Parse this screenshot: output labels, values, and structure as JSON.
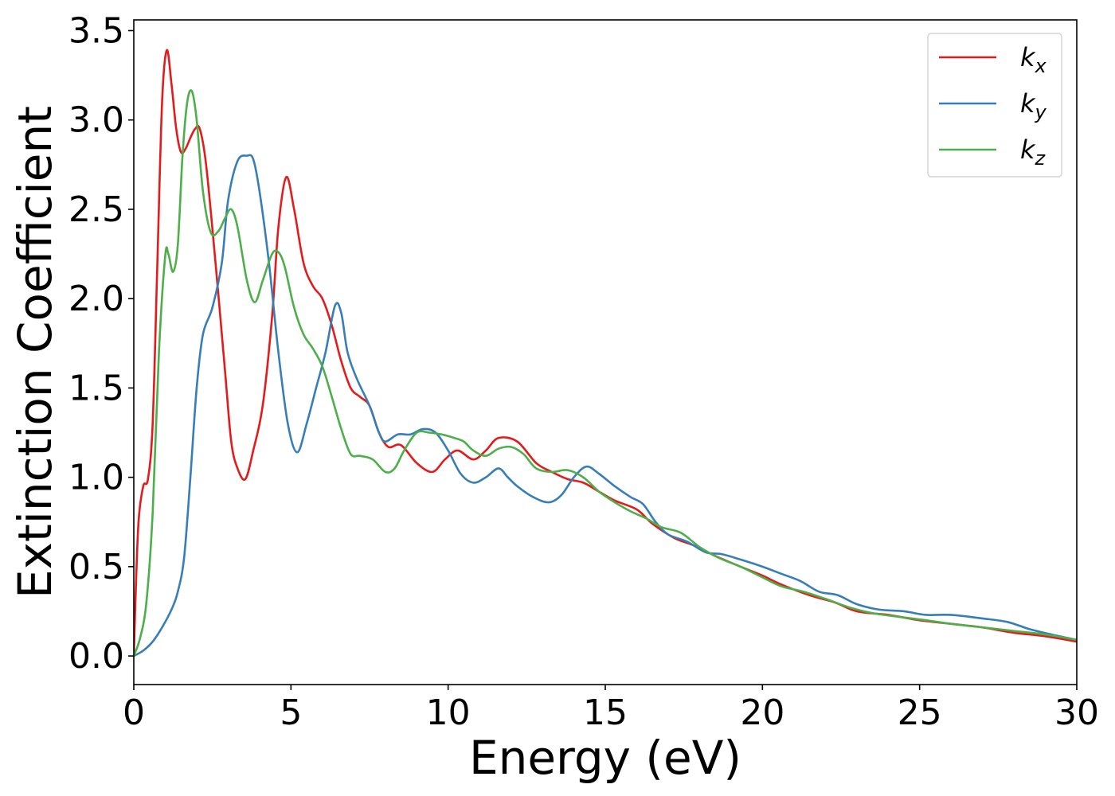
{
  "chart_data": {
    "type": "line",
    "title": "",
    "xlabel": "Energy (eV)",
    "ylabel": "Extinction Coefficient",
    "xlim": [
      0,
      30
    ],
    "ylim": [
      -0.16,
      3.56
    ],
    "xticks": [
      0,
      5,
      10,
      15,
      20,
      25,
      30
    ],
    "xtick_labels": [
      "0",
      "5",
      "10",
      "15",
      "20",
      "25",
      "30"
    ],
    "yticks": [
      0.0,
      0.5,
      1.0,
      1.5,
      2.0,
      2.5,
      3.0,
      3.5
    ],
    "ytick_labels": [
      "0.0",
      "0.5",
      "1.0",
      "1.5",
      "2.0",
      "2.5",
      "3.0",
      "3.5"
    ],
    "grid": false,
    "legend_position": "top-right",
    "series": [
      {
        "name": "kx",
        "label_base": "k",
        "label_sub": "x",
        "color": "#e41a1c",
        "points": [
          [
            0,
            0
          ],
          [
            0.05,
            0.3
          ],
          [
            0.15,
            0.75
          ],
          [
            0.3,
            0.95
          ],
          [
            0.45,
            0.99
          ],
          [
            0.6,
            1.3
          ],
          [
            0.75,
            2.2
          ],
          [
            0.9,
            3.1
          ],
          [
            1.05,
            3.39
          ],
          [
            1.2,
            3.2
          ],
          [
            1.35,
            2.95
          ],
          [
            1.5,
            2.82
          ],
          [
            1.65,
            2.84
          ],
          [
            1.8,
            2.9
          ],
          [
            1.95,
            2.95
          ],
          [
            2.1,
            2.95
          ],
          [
            2.3,
            2.75
          ],
          [
            2.6,
            2.2
          ],
          [
            2.9,
            1.6
          ],
          [
            3.1,
            1.2
          ],
          [
            3.3,
            1.05
          ],
          [
            3.55,
            0.99
          ],
          [
            3.8,
            1.15
          ],
          [
            4.1,
            1.4
          ],
          [
            4.4,
            1.9
          ],
          [
            4.6,
            2.4
          ],
          [
            4.85,
            2.68
          ],
          [
            5.1,
            2.5
          ],
          [
            5.4,
            2.2
          ],
          [
            5.7,
            2.07
          ],
          [
            6.0,
            2.0
          ],
          [
            6.3,
            1.85
          ],
          [
            6.6,
            1.65
          ],
          [
            6.9,
            1.5
          ],
          [
            7.2,
            1.45
          ],
          [
            7.5,
            1.4
          ],
          [
            7.8,
            1.25
          ],
          [
            8.1,
            1.17
          ],
          [
            8.5,
            1.18
          ],
          [
            9.0,
            1.08
          ],
          [
            9.5,
            1.03
          ],
          [
            9.9,
            1.1
          ],
          [
            10.3,
            1.15
          ],
          [
            10.8,
            1.1
          ],
          [
            11.2,
            1.15
          ],
          [
            11.6,
            1.22
          ],
          [
            12.2,
            1.2
          ],
          [
            12.8,
            1.08
          ],
          [
            13.3,
            1.03
          ],
          [
            13.8,
            0.99
          ],
          [
            14.3,
            0.97
          ],
          [
            14.8,
            0.92
          ],
          [
            15.3,
            0.87
          ],
          [
            16.0,
            0.82
          ],
          [
            16.5,
            0.74
          ],
          [
            17.2,
            0.66
          ],
          [
            17.8,
            0.62
          ],
          [
            18.5,
            0.56
          ],
          [
            19.3,
            0.5
          ],
          [
            20.0,
            0.45
          ],
          [
            20.6,
            0.4
          ],
          [
            21.5,
            0.34
          ],
          [
            22.3,
            0.3
          ],
          [
            23.0,
            0.25
          ],
          [
            24.0,
            0.23
          ],
          [
            25.0,
            0.2
          ],
          [
            26.0,
            0.18
          ],
          [
            27.0,
            0.16
          ],
          [
            28.0,
            0.13
          ],
          [
            29.0,
            0.11
          ],
          [
            30.0,
            0.08
          ]
        ]
      },
      {
        "name": "ky",
        "label_base": "k",
        "label_sub": "y",
        "color": "#377eb8",
        "points": [
          [
            0,
            0
          ],
          [
            0.3,
            0.03
          ],
          [
            0.6,
            0.08
          ],
          [
            0.9,
            0.16
          ],
          [
            1.2,
            0.26
          ],
          [
            1.4,
            0.36
          ],
          [
            1.6,
            0.55
          ],
          [
            1.8,
            1.0
          ],
          [
            2.0,
            1.5
          ],
          [
            2.2,
            1.8
          ],
          [
            2.5,
            1.95
          ],
          [
            2.8,
            2.2
          ],
          [
            3.0,
            2.55
          ],
          [
            3.3,
            2.77
          ],
          [
            3.6,
            2.8
          ],
          [
            3.8,
            2.78
          ],
          [
            4.0,
            2.6
          ],
          [
            4.3,
            2.2
          ],
          [
            4.6,
            1.7
          ],
          [
            4.9,
            1.3
          ],
          [
            5.2,
            1.14
          ],
          [
            5.5,
            1.3
          ],
          [
            5.8,
            1.5
          ],
          [
            6.1,
            1.7
          ],
          [
            6.4,
            1.96
          ],
          [
            6.6,
            1.92
          ],
          [
            6.8,
            1.7
          ],
          [
            7.1,
            1.55
          ],
          [
            7.5,
            1.4
          ],
          [
            7.8,
            1.25
          ],
          [
            8.0,
            1.2
          ],
          [
            8.4,
            1.24
          ],
          [
            8.8,
            1.24
          ],
          [
            9.2,
            1.27
          ],
          [
            9.6,
            1.25
          ],
          [
            10.0,
            1.15
          ],
          [
            10.4,
            1.02
          ],
          [
            10.8,
            0.97
          ],
          [
            11.2,
            1.0
          ],
          [
            11.6,
            1.05
          ],
          [
            11.9,
            1.0
          ],
          [
            12.2,
            0.95
          ],
          [
            12.7,
            0.89
          ],
          [
            13.2,
            0.86
          ],
          [
            13.6,
            0.9
          ],
          [
            14.0,
            1.0
          ],
          [
            14.4,
            1.06
          ],
          [
            14.8,
            1.02
          ],
          [
            15.3,
            0.95
          ],
          [
            15.8,
            0.89
          ],
          [
            16.2,
            0.85
          ],
          [
            16.6,
            0.75
          ],
          [
            17.0,
            0.68
          ],
          [
            17.6,
            0.64
          ],
          [
            18.2,
            0.58
          ],
          [
            18.7,
            0.57
          ],
          [
            19.3,
            0.54
          ],
          [
            20.0,
            0.5
          ],
          [
            20.6,
            0.46
          ],
          [
            21.2,
            0.42
          ],
          [
            21.8,
            0.36
          ],
          [
            22.4,
            0.34
          ],
          [
            23.0,
            0.29
          ],
          [
            23.7,
            0.26
          ],
          [
            24.5,
            0.25
          ],
          [
            25.2,
            0.23
          ],
          [
            26.0,
            0.23
          ],
          [
            27.0,
            0.21
          ],
          [
            27.8,
            0.19
          ],
          [
            28.5,
            0.15
          ],
          [
            29.2,
            0.12
          ],
          [
            30.0,
            0.09
          ]
        ]
      },
      {
        "name": "kz",
        "label_base": "k",
        "label_sub": "z",
        "color": "#4daf4a",
        "points": [
          [
            0,
            0
          ],
          [
            0.2,
            0.1
          ],
          [
            0.4,
            0.3
          ],
          [
            0.6,
            0.8
          ],
          [
            0.8,
            1.7
          ],
          [
            1.0,
            2.24
          ],
          [
            1.1,
            2.25
          ],
          [
            1.25,
            2.15
          ],
          [
            1.4,
            2.3
          ],
          [
            1.55,
            2.8
          ],
          [
            1.7,
            3.1
          ],
          [
            1.85,
            3.16
          ],
          [
            2.0,
            3.0
          ],
          [
            2.2,
            2.6
          ],
          [
            2.45,
            2.37
          ],
          [
            2.7,
            2.38
          ],
          [
            2.9,
            2.45
          ],
          [
            3.1,
            2.5
          ],
          [
            3.3,
            2.4
          ],
          [
            3.6,
            2.1
          ],
          [
            3.85,
            1.98
          ],
          [
            4.1,
            2.1
          ],
          [
            4.4,
            2.25
          ],
          [
            4.6,
            2.26
          ],
          [
            4.8,
            2.18
          ],
          [
            5.1,
            1.95
          ],
          [
            5.4,
            1.8
          ],
          [
            5.7,
            1.72
          ],
          [
            6.0,
            1.62
          ],
          [
            6.3,
            1.45
          ],
          [
            6.6,
            1.27
          ],
          [
            6.9,
            1.13
          ],
          [
            7.2,
            1.12
          ],
          [
            7.6,
            1.1
          ],
          [
            8.0,
            1.03
          ],
          [
            8.3,
            1.05
          ],
          [
            8.6,
            1.15
          ],
          [
            9.0,
            1.25
          ],
          [
            9.4,
            1.25
          ],
          [
            9.8,
            1.24
          ],
          [
            10.2,
            1.22
          ],
          [
            10.5,
            1.2
          ],
          [
            10.8,
            1.15
          ],
          [
            11.2,
            1.12
          ],
          [
            11.6,
            1.16
          ],
          [
            12.0,
            1.17
          ],
          [
            12.4,
            1.13
          ],
          [
            12.8,
            1.05
          ],
          [
            13.3,
            1.03
          ],
          [
            13.8,
            1.04
          ],
          [
            14.3,
            1.0
          ],
          [
            14.8,
            0.92
          ],
          [
            15.3,
            0.86
          ],
          [
            15.8,
            0.81
          ],
          [
            16.3,
            0.77
          ],
          [
            16.8,
            0.72
          ],
          [
            17.4,
            0.69
          ],
          [
            18.0,
            0.61
          ],
          [
            18.6,
            0.55
          ],
          [
            19.3,
            0.5
          ],
          [
            20.0,
            0.44
          ],
          [
            20.6,
            0.39
          ],
          [
            21.3,
            0.36
          ],
          [
            22.0,
            0.32
          ],
          [
            22.8,
            0.27
          ],
          [
            23.5,
            0.24
          ],
          [
            24.3,
            0.22
          ],
          [
            25.2,
            0.2
          ],
          [
            26.0,
            0.18
          ],
          [
            27.0,
            0.16
          ],
          [
            28.0,
            0.14
          ],
          [
            29.0,
            0.12
          ],
          [
            30.0,
            0.09
          ]
        ]
      }
    ]
  }
}
